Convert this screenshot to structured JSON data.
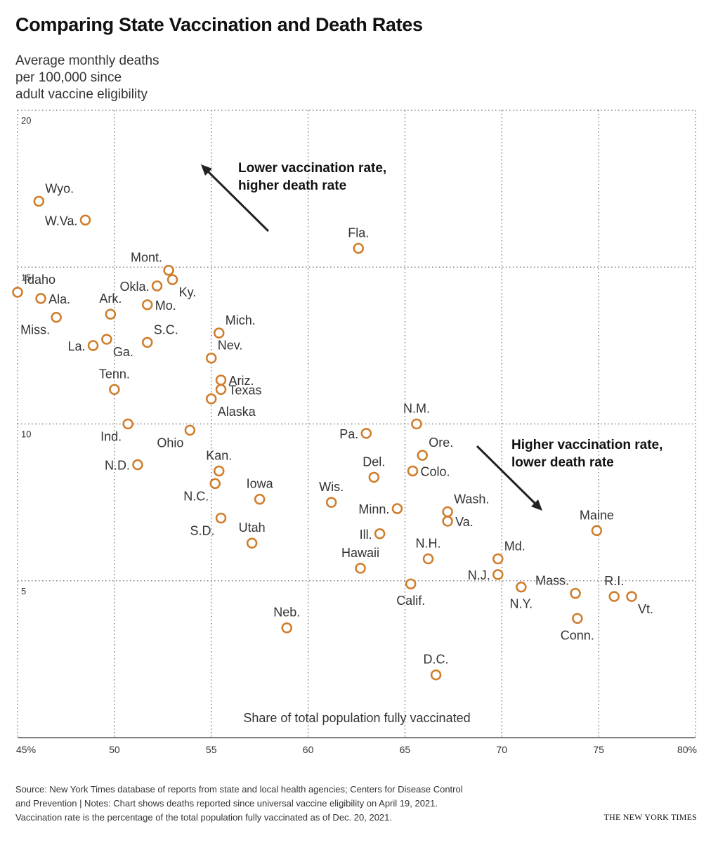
{
  "title": "Comparing State Vaccination and Death Rates",
  "y_axis_label": [
    "Average monthly deaths",
    "per 100,000 since",
    "adult vaccine eligibility"
  ],
  "source": [
    "Source: New York Times database of reports from state and local health agencies; Centers for Disease Control",
    "and Prevention | Notes: Chart shows deaths reported since universal vaccine eligibility on April 19, 2021.",
    "Vaccination rate is the percentage of the total population fully vaccinated as of Dec. 20, 2021."
  ],
  "credit": "THE NEW YORK TIMES",
  "colors": {
    "marker": "#d07c2a",
    "grid": "#666666",
    "text": "#333333"
  },
  "chart_data": {
    "type": "scatter",
    "title": "Comparing State Vaccination and Death Rates",
    "xlabel": "Share of total population fully vaccinated",
    "ylabel": "Average monthly deaths per 100,000 since adult vaccine eligibility",
    "xlim": [
      45,
      80
    ],
    "ylim": [
      0,
      20
    ],
    "grid": true,
    "x_ticks": [
      {
        "value": 45,
        "label": "45%"
      },
      {
        "value": 50,
        "label": "50"
      },
      {
        "value": 55,
        "label": "55"
      },
      {
        "value": 60,
        "label": "60"
      },
      {
        "value": 65,
        "label": "65"
      },
      {
        "value": 70,
        "label": "70"
      },
      {
        "value": 75,
        "label": "75"
      },
      {
        "value": 80,
        "label": "80%"
      }
    ],
    "y_ticks": [
      {
        "value": 5,
        "label": "5"
      },
      {
        "value": 10,
        "label": "10"
      },
      {
        "value": 15,
        "label": "15"
      },
      {
        "value": 20,
        "label": "20"
      }
    ],
    "annotations": [
      {
        "lines": [
          "Lower vaccination rate,",
          "higher death rate"
        ],
        "direction": "up-left"
      },
      {
        "lines": [
          "Higher vaccination rate,",
          "lower death rate"
        ],
        "direction": "down-right"
      }
    ],
    "points": [
      {
        "label": "Wyo.",
        "x": 46.1,
        "y": 17.1,
        "pos": "tr"
      },
      {
        "label": "W.Va.",
        "x": 48.5,
        "y": 16.5,
        "pos": "l"
      },
      {
        "label": "Fla.",
        "x": 62.6,
        "y": 15.6,
        "pos": "t"
      },
      {
        "label": "Mont.",
        "x": 52.8,
        "y": 14.9,
        "pos": "tl"
      },
      {
        "label": "Okla.",
        "x": 52.2,
        "y": 14.4,
        "pos": "l"
      },
      {
        "label": "Ky.",
        "x": 53.0,
        "y": 14.6,
        "pos": "br"
      },
      {
        "label": "Idaho",
        "x": 45.0,
        "y": 14.2,
        "pos": "tr"
      },
      {
        "label": "Ala.",
        "x": 46.2,
        "y": 14.0,
        "pos": "r"
      },
      {
        "label": "Ark.",
        "x": 49.8,
        "y": 13.5,
        "pos": "t"
      },
      {
        "label": "Mo.",
        "x": 51.7,
        "y": 13.8,
        "pos": "r"
      },
      {
        "label": "Miss.",
        "x": 47.0,
        "y": 13.4,
        "pos": "bl"
      },
      {
        "label": "Mich.",
        "x": 55.4,
        "y": 12.9,
        "pos": "tr"
      },
      {
        "label": "S.C.",
        "x": 51.7,
        "y": 12.6,
        "pos": "tr"
      },
      {
        "label": "La.",
        "x": 48.9,
        "y": 12.5,
        "pos": "l"
      },
      {
        "label": "Ga.",
        "x": 49.6,
        "y": 12.7,
        "pos": "br"
      },
      {
        "label": "Nev.",
        "x": 55.0,
        "y": 12.1,
        "pos": "tr"
      },
      {
        "label": "Ariz.",
        "x": 55.5,
        "y": 11.4,
        "pos": "r"
      },
      {
        "label": "Texas",
        "x": 55.5,
        "y": 11.1,
        "pos": "r"
      },
      {
        "label": "Tenn.",
        "x": 50.0,
        "y": 11.1,
        "pos": "t"
      },
      {
        "label": "Alaska",
        "x": 55.0,
        "y": 10.8,
        "pos": "br"
      },
      {
        "label": "N.M.",
        "x": 65.6,
        "y": 10.0,
        "pos": "t"
      },
      {
        "label": "Ind.",
        "x": 50.7,
        "y": 10.0,
        "pos": "bl"
      },
      {
        "label": "Ohio",
        "x": 53.9,
        "y": 9.8,
        "pos": "bl"
      },
      {
        "label": "Pa.",
        "x": 63.0,
        "y": 9.7,
        "pos": "l"
      },
      {
        "label": "Ore.",
        "x": 65.9,
        "y": 9.0,
        "pos": "tr"
      },
      {
        "label": "Kan.",
        "x": 55.4,
        "y": 8.5,
        "pos": "t"
      },
      {
        "label": "N.D.",
        "x": 51.2,
        "y": 8.7,
        "pos": "l"
      },
      {
        "label": "Del.",
        "x": 63.4,
        "y": 8.3,
        "pos": "t"
      },
      {
        "label": "Colo.",
        "x": 65.4,
        "y": 8.5,
        "pos": "r"
      },
      {
        "label": "N.C.",
        "x": 55.2,
        "y": 8.1,
        "pos": "bl"
      },
      {
        "label": "Iowa",
        "x": 57.5,
        "y": 7.6,
        "pos": "t"
      },
      {
        "label": "Wis.",
        "x": 61.2,
        "y": 7.5,
        "pos": "t"
      },
      {
        "label": "Minn.",
        "x": 64.6,
        "y": 7.3,
        "pos": "l"
      },
      {
        "label": "Wash.",
        "x": 67.2,
        "y": 7.2,
        "pos": "tr"
      },
      {
        "label": "S.D.",
        "x": 55.5,
        "y": 7.0,
        "pos": "bl"
      },
      {
        "label": "Va.",
        "x": 67.2,
        "y": 6.9,
        "pos": "r"
      },
      {
        "label": "Maine",
        "x": 74.9,
        "y": 6.6,
        "pos": "t"
      },
      {
        "label": "Ill.",
        "x": 63.7,
        "y": 6.5,
        "pos": "l"
      },
      {
        "label": "Utah",
        "x": 57.1,
        "y": 6.2,
        "pos": "t"
      },
      {
        "label": "Md.",
        "x": 69.8,
        "y": 5.7,
        "pos": "tr"
      },
      {
        "label": "N.H.",
        "x": 66.2,
        "y": 5.7,
        "pos": "t"
      },
      {
        "label": "Hawaii",
        "x": 62.7,
        "y": 5.4,
        "pos": "t"
      },
      {
        "label": "N.J.",
        "x": 69.8,
        "y": 5.2,
        "pos": "l"
      },
      {
        "label": "Calif.",
        "x": 65.3,
        "y": 4.9,
        "pos": "b"
      },
      {
        "label": "N.Y.",
        "x": 71.0,
        "y": 4.8,
        "pos": "b"
      },
      {
        "label": "Mass.",
        "x": 73.8,
        "y": 4.6,
        "pos": "tl"
      },
      {
        "label": "R.I.",
        "x": 75.8,
        "y": 4.5,
        "pos": "t"
      },
      {
        "label": "Vt.",
        "x": 76.7,
        "y": 4.5,
        "pos": "br"
      },
      {
        "label": "Conn.",
        "x": 73.9,
        "y": 3.8,
        "pos": "b"
      },
      {
        "label": "Neb.",
        "x": 58.9,
        "y": 3.5,
        "pos": "t"
      },
      {
        "label": "D.C.",
        "x": 66.6,
        "y": 2.0,
        "pos": "t"
      }
    ]
  }
}
